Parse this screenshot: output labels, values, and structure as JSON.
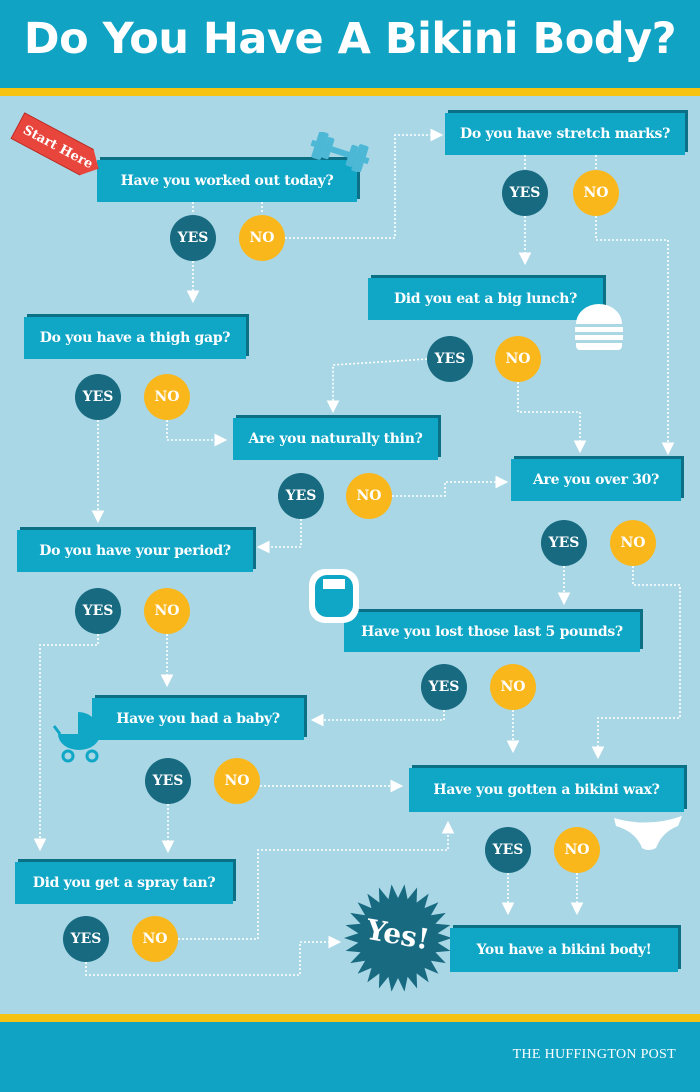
{
  "header": {
    "title": "Do You Have A Bikini Body?"
  },
  "start_label": "Start Here",
  "answers": {
    "yes": "YES",
    "no": "NO"
  },
  "questions": [
    {
      "id": "worked-out",
      "text": "Have you worked out today?"
    },
    {
      "id": "stretch-marks",
      "text": "Do you have stretch marks?"
    },
    {
      "id": "big-lunch",
      "text": "Did you eat a big lunch?"
    },
    {
      "id": "thigh-gap",
      "text": "Do you have a thigh gap?"
    },
    {
      "id": "naturally-thin",
      "text": "Are you naturally thin?"
    },
    {
      "id": "over-30",
      "text": "Are you over 30?"
    },
    {
      "id": "period",
      "text": "Do you have your period?"
    },
    {
      "id": "last-5-pounds",
      "text": "Have you lost those last 5 pounds?"
    },
    {
      "id": "baby",
      "text": "Have you had a baby?"
    },
    {
      "id": "bikini-wax",
      "text": "Have you gotten a bikini wax?"
    },
    {
      "id": "spray-tan",
      "text": "Did you get a spray tan?"
    }
  ],
  "result": {
    "burst": "Yes!",
    "text": "You have a bikini body!"
  },
  "footer": {
    "brand": "THE HUFFINGTON POST"
  },
  "icons": [
    "dumbbell-icon",
    "burger-icon",
    "scale-icon",
    "stroller-icon",
    "bikini-bottom-icon"
  ],
  "colors": {
    "background": "#a9d7e6",
    "box": "#10a6c6",
    "yes": "#176a80",
    "no": "#f9b71c",
    "accent": "#f6c312",
    "start": "#e8453c"
  }
}
